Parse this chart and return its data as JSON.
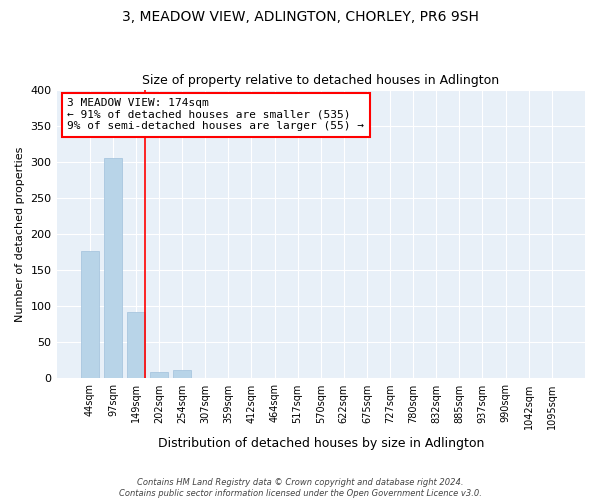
{
  "title": "3, MEADOW VIEW, ADLINGTON, CHORLEY, PR6 9SH",
  "subtitle": "Size of property relative to detached houses in Adlington",
  "xlabel": "Distribution of detached houses by size in Adlington",
  "ylabel": "Number of detached properties",
  "bar_labels": [
    "44sqm",
    "97sqm",
    "149sqm",
    "202sqm",
    "254sqm",
    "307sqm",
    "359sqm",
    "412sqm",
    "464sqm",
    "517sqm",
    "570sqm",
    "622sqm",
    "675sqm",
    "727sqm",
    "780sqm",
    "832sqm",
    "885sqm",
    "937sqm",
    "990sqm",
    "1042sqm",
    "1095sqm"
  ],
  "bar_values": [
    177,
    305,
    92,
    9,
    11,
    1,
    0,
    0,
    0,
    0,
    0,
    1,
    0,
    0,
    0,
    0,
    0,
    0,
    0,
    0,
    1
  ],
  "bar_color": "#b8d4e8",
  "bar_edge_color": "#a0c0dc",
  "vline_x": 2.4,
  "vline_color": "red",
  "annotation_text": "3 MEADOW VIEW: 174sqm\n← 91% of detached houses are smaller (535)\n9% of semi-detached houses are larger (55) →",
  "annotation_box_color": "white",
  "annotation_box_edge": "red",
  "ylim": [
    0,
    400
  ],
  "yticks": [
    0,
    50,
    100,
    150,
    200,
    250,
    300,
    350,
    400
  ],
  "bg_color": "#e8f0f8",
  "title_fontsize": 10,
  "subtitle_fontsize": 9,
  "ylabel_fontsize": 8,
  "xlabel_fontsize": 9,
  "footer_line1": "Contains HM Land Registry data © Crown copyright and database right 2024.",
  "footer_line2": "Contains public sector information licensed under the Open Government Licence v3.0."
}
